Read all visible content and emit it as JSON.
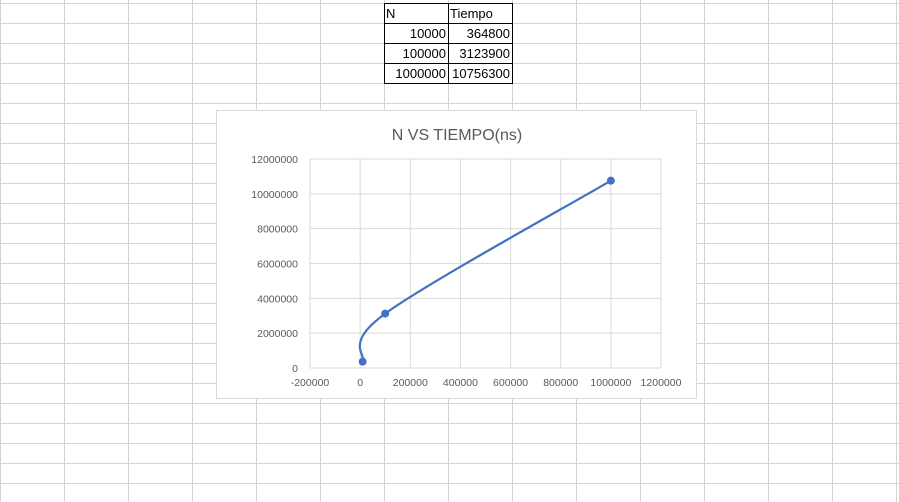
{
  "sheet": {
    "headers": [
      "N",
      "Tiempo"
    ],
    "rows": [
      [
        "10000",
        "364800"
      ],
      [
        "100000",
        "3123900"
      ],
      [
        "1000000",
        "10756300"
      ]
    ]
  },
  "colors": {
    "series": "#4472c4",
    "gridline_sheet": "#d4d4d4",
    "gridline_chart": "#d9d9d9",
    "axis_text": "#595959",
    "title_text": "#595959"
  },
  "chart_data": {
    "type": "scatter",
    "title": "N VS TIEMPO(ns)",
    "xlabel": "",
    "ylabel": "",
    "smooth": true,
    "markers": true,
    "xlim": [
      -200000,
      1200000
    ],
    "ylim": [
      0,
      12000000
    ],
    "xticks": [
      -200000,
      0,
      200000,
      400000,
      600000,
      800000,
      1000000,
      1200000
    ],
    "yticks": [
      0,
      2000000,
      4000000,
      6000000,
      8000000,
      10000000,
      12000000
    ],
    "grid": true,
    "legend": "none",
    "series": [
      {
        "x": [
          10000,
          100000,
          1000000
        ],
        "y": [
          364800,
          3123900,
          10756300
        ]
      }
    ]
  }
}
